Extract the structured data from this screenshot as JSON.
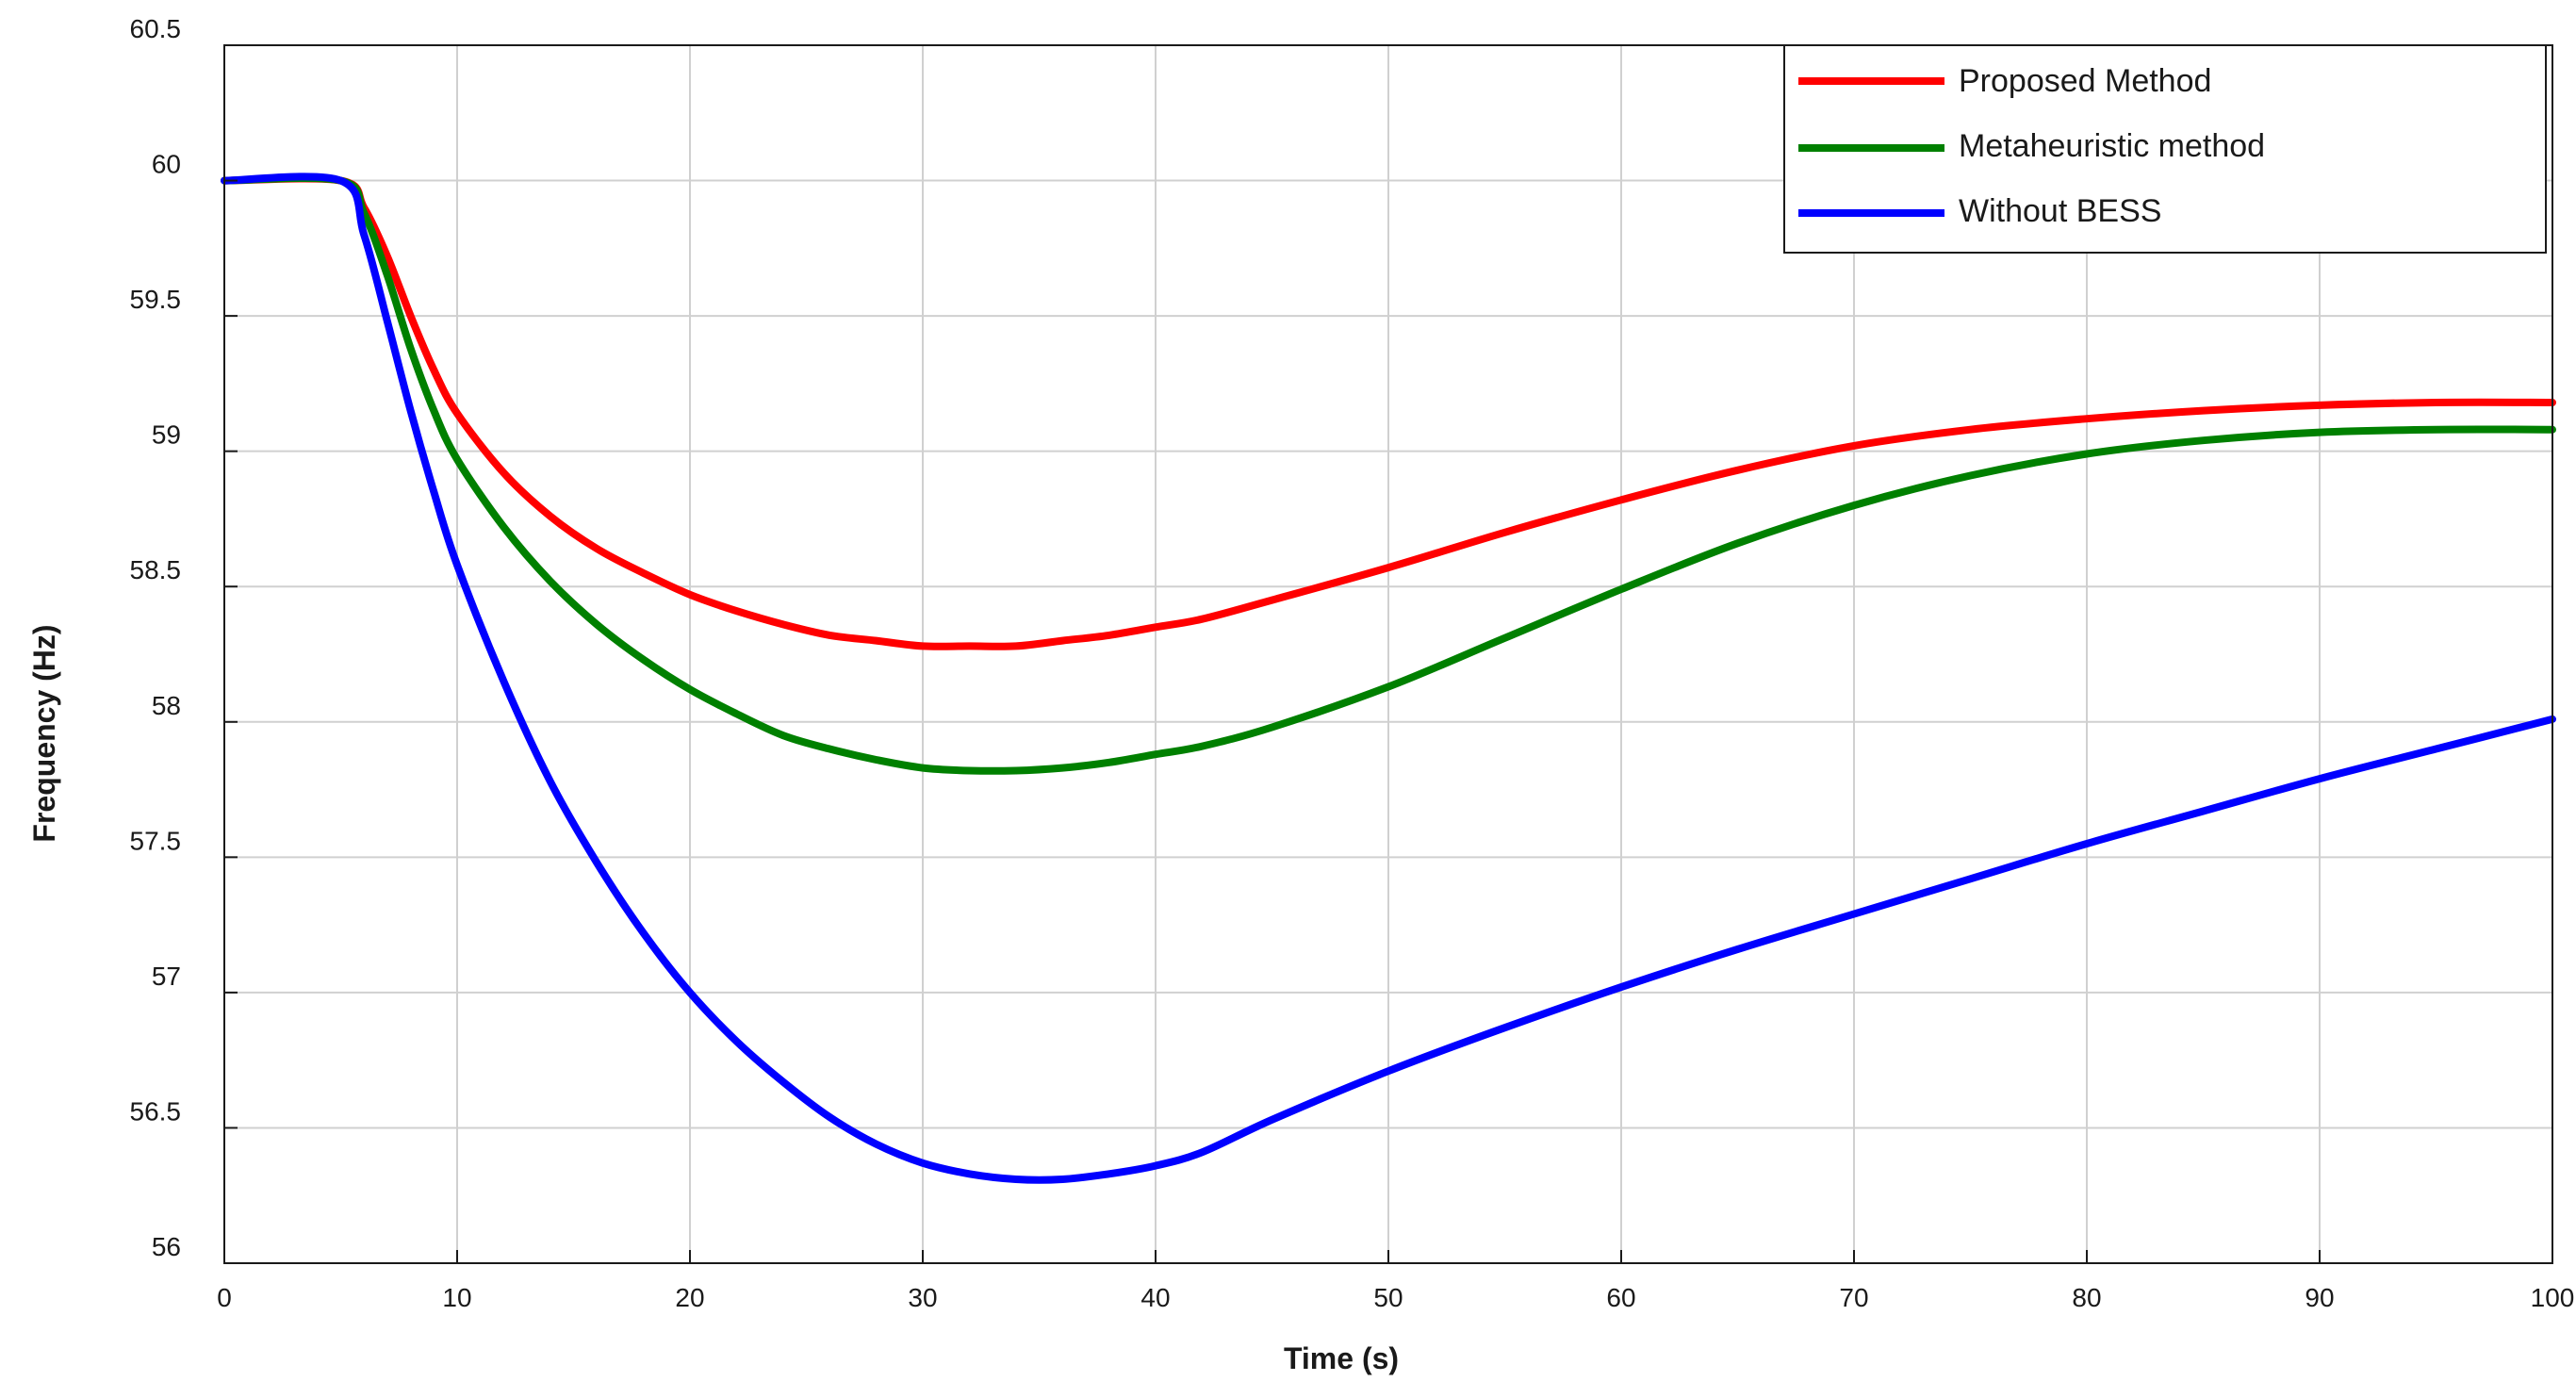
{
  "chart_data": {
    "type": "line",
    "title": "",
    "xlabel": "Time (s)",
    "ylabel": "Frequency (Hz)",
    "xlim": [
      0,
      100
    ],
    "ylim": [
      56,
      60.5
    ],
    "xticks": [
      "0",
      "10",
      "20",
      "30",
      "40",
      "50",
      "60",
      "70",
      "80",
      "90",
      "100"
    ],
    "yticks": [
      "56",
      "56.5",
      "57",
      "57.5",
      "58",
      "58.5",
      "59",
      "59.5",
      "60",
      "60.5"
    ],
    "grid": true,
    "legend_position": "top-right",
    "series": [
      {
        "name": "Proposed Method",
        "color": "#ff0000",
        "x": [
          0,
          5,
          6,
          7,
          8,
          9,
          10,
          12,
          14,
          16,
          18,
          20,
          22,
          24,
          26,
          28,
          30,
          32,
          34,
          36,
          38,
          40,
          42,
          45,
          50,
          55,
          60,
          65,
          70,
          75,
          80,
          85,
          90,
          95,
          100
        ],
        "y": [
          60,
          60,
          59.9,
          59.72,
          59.5,
          59.3,
          59.14,
          58.92,
          58.76,
          58.64,
          58.55,
          58.47,
          58.41,
          58.36,
          58.32,
          58.3,
          58.28,
          58.28,
          58.28,
          58.3,
          58.32,
          58.35,
          58.38,
          58.45,
          58.57,
          58.7,
          58.82,
          58.93,
          59.02,
          59.08,
          59.12,
          59.15,
          59.17,
          59.18,
          59.18
        ]
      },
      {
        "name": "Metaheuristic method",
        "color": "#008000",
        "x": [
          0,
          5,
          6,
          7,
          8,
          9,
          10,
          12,
          14,
          16,
          18,
          20,
          22,
          24,
          26,
          28,
          30,
          32,
          34,
          36,
          38,
          40,
          42,
          45,
          50,
          55,
          60,
          65,
          70,
          75,
          80,
          85,
          90,
          95,
          100
        ],
        "y": [
          60,
          60,
          59.88,
          59.65,
          59.38,
          59.15,
          58.97,
          58.72,
          58.52,
          58.36,
          58.23,
          58.12,
          58.03,
          57.95,
          57.9,
          57.86,
          57.83,
          57.82,
          57.82,
          57.83,
          57.85,
          57.88,
          57.91,
          57.98,
          58.13,
          58.31,
          58.49,
          58.66,
          58.8,
          58.91,
          58.99,
          59.04,
          59.07,
          59.08,
          59.08
        ]
      },
      {
        "name": "Without BESS",
        "color": "#0000ff",
        "x": [
          0,
          5,
          6,
          7,
          8,
          9,
          10,
          12,
          14,
          16,
          18,
          20,
          22,
          24,
          26,
          28,
          30,
          32,
          34,
          36,
          38,
          40,
          42,
          45,
          50,
          55,
          60,
          65,
          70,
          75,
          80,
          85,
          90,
          95,
          100
        ],
        "y": [
          60,
          60,
          59.8,
          59.48,
          59.15,
          58.85,
          58.58,
          58.15,
          57.78,
          57.48,
          57.22,
          57.0,
          56.82,
          56.67,
          56.54,
          56.44,
          56.37,
          56.33,
          56.31,
          56.31,
          56.33,
          56.36,
          56.41,
          56.53,
          56.71,
          56.87,
          57.02,
          57.16,
          57.29,
          57.42,
          57.55,
          57.67,
          57.79,
          57.9,
          58.01
        ]
      }
    ]
  }
}
